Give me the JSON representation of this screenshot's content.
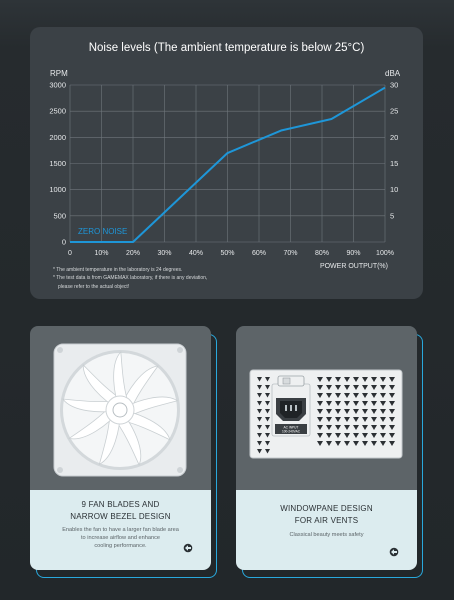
{
  "chart_data": {
    "type": "line",
    "title": "Noise levels (The ambient temperature is below 25°C)",
    "y_left_unit": "RPM",
    "y_right_unit": "dBA",
    "ylim_left": [
      0,
      3000
    ],
    "ylim_right": [
      0,
      30
    ],
    "y_left_ticks": [
      "0",
      "500",
      "1000",
      "1500",
      "2000",
      "2500",
      "3000"
    ],
    "y_right_ticks": [
      "5",
      "10",
      "15",
      "20",
      "25",
      "30"
    ],
    "x_ticks": [
      "0",
      "10%",
      "20%",
      "30%",
      "40%",
      "50%",
      "60%",
      "70%",
      "80%",
      "90%",
      "100%"
    ],
    "xlabel": "POWER OUTPUT(%)",
    "annotation": "ZERO NOISE",
    "grid": true,
    "series": [
      {
        "color": "#1e96d8",
        "x": [
          0,
          20,
          50,
          67,
          83,
          100
        ],
        "y": [
          0,
          0,
          1700,
          2130,
          2350,
          2950
        ]
      }
    ]
  },
  "footnotes": [
    "* The ambient temperature in the laboratory is 24 degrees.",
    "* The test data is from GAMEMAX laboratory, if there is any deviation,",
    "please refer to the actual object!"
  ],
  "cards": [
    {
      "heading_line1": "9 FAN BLADES AND",
      "heading_line2": "NARROW BEZEL DESIGN",
      "desc_line1": "Enables the fan to have a larger fan blade area",
      "desc_line2": "to increase airflow and enhance",
      "desc_line3": "cooling performance."
    },
    {
      "heading_line1": "WINDOWPANE DESIGN",
      "heading_line2": "FOR AIR VENTS",
      "desc_line1": "Classical beauty meets safety"
    }
  ],
  "psu_label": {
    "line1": "AC INPUT",
    "line2": "100-240VAC"
  },
  "colors": {
    "accent_blue": "#1e96d8",
    "panel": "#3b4146",
    "card_light": "#dcecef"
  }
}
